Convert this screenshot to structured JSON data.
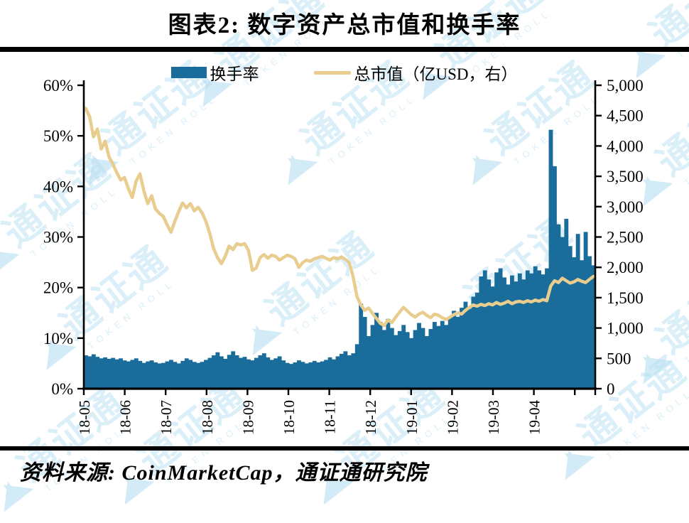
{
  "title": "图表2:  数字资产总市值和换手率",
  "source": "资料来源: CoinMarketCap，通证通研究院",
  "watermark": {
    "text": "通证通",
    "subtext": "TOKEN ROLL",
    "color": "#b9e0f4"
  },
  "legend": {
    "items": [
      {
        "label": "换手率",
        "swatch": "bar",
        "color": "#1a6c9a"
      },
      {
        "label": "总市值（亿USD，右）",
        "swatch": "line",
        "color": "#e8cd8e"
      }
    ]
  },
  "chart_data": {
    "type": "bar+line",
    "title": "数字资产总市值和换手率",
    "x_tick_labels": [
      "18-05",
      "18-06",
      "18-07",
      "18-08",
      "18-09",
      "18-10",
      "18-11",
      "18-12",
      "19-01",
      "19-02",
      "19-03",
      "19-04"
    ],
    "left_axis": {
      "label": "换手率",
      "unit": "%",
      "min": 0,
      "max": 60,
      "tick_labels": [
        "60%",
        "50%",
        "40%",
        "30%",
        "20%",
        "10%",
        "0%"
      ]
    },
    "right_axis": {
      "label": "总市值",
      "unit": "亿USD",
      "min": 0,
      "max": 5000,
      "tick_labels": [
        "5,000",
        "4,500",
        "4,000",
        "3,500",
        "3,000",
        "2,500",
        "2,000",
        "1,500",
        "1,000",
        "500",
        "0"
      ]
    },
    "grid": false,
    "legend_position": "top",
    "sampling": "约3日间隔, 2018-05 至 2019-05",
    "series": [
      {
        "name": "换手率",
        "type": "bar",
        "axis": "left",
        "unit": "%",
        "color": "#1a6c9a",
        "values": [
          6.6,
          6.4,
          6.8,
          6.3,
          6.0,
          6.2,
          5.9,
          6.1,
          5.8,
          6.0,
          5.6,
          5.4,
          5.7,
          6.0,
          5.5,
          5.1,
          5.4,
          5.6,
          5.2,
          5.0,
          5.1,
          5.4,
          5.7,
          5.3,
          5.0,
          5.5,
          6.0,
          5.7,
          5.3,
          5.1,
          5.3,
          5.7,
          6.1,
          6.6,
          7.2,
          6.4,
          5.9,
          6.7,
          7.4,
          6.6,
          6.1,
          6.3,
          5.8,
          5.6,
          6.1,
          6.6,
          7.0,
          6.2,
          5.7,
          6.0,
          6.4,
          5.6,
          5.1,
          4.9,
          5.2,
          5.6,
          5.3,
          5.0,
          5.2,
          5.5,
          5.2,
          5.4,
          5.7,
          6.2,
          5.8,
          6.4,
          6.9,
          7.4,
          6.6,
          7.0,
          8.8,
          16.8,
          14.2,
          10.4,
          12.6,
          15.0,
          13.2,
          11.6,
          13.8,
          12.0,
          10.6,
          11.4,
          12.6,
          11.2,
          10.0,
          11.6,
          13.0,
          12.0,
          10.4,
          11.8,
          13.2,
          12.4,
          13.4,
          12.6,
          14.0,
          15.4,
          14.2,
          16.0,
          17.2,
          15.8,
          18.2,
          19.0,
          22.2,
          23.4,
          21.6,
          20.2,
          23.0,
          23.8,
          22.0,
          20.6,
          22.4,
          21.2,
          22.8,
          21.6,
          23.4,
          22.8,
          24.2,
          23.4,
          22.6,
          23.8,
          51.2,
          44.0,
          32.5,
          30.0,
          33.6,
          28.2,
          26.0,
          30.6,
          25.4,
          31.0,
          26.2,
          24.4
        ]
      },
      {
        "name": "总市值",
        "type": "line",
        "axis": "right",
        "unit": "亿USD",
        "color": "#e8cd8e",
        "values": [
          4620,
          4480,
          4150,
          4280,
          3950,
          4080,
          3820,
          3700,
          3560,
          3440,
          3480,
          3300,
          3150,
          3420,
          3540,
          3260,
          3050,
          3180,
          2960,
          2890,
          2840,
          2700,
          2580,
          2760,
          2920,
          3060,
          2980,
          3050,
          2930,
          2990,
          2900,
          2760,
          2560,
          2310,
          2160,
          2060,
          2180,
          2350,
          2290,
          2390,
          2370,
          2390,
          2280,
          1950,
          1990,
          2160,
          2210,
          2150,
          2200,
          2180,
          2120,
          2160,
          2200,
          2180,
          2140,
          2000,
          2080,
          2120,
          2100,
          2140,
          2160,
          2180,
          2150,
          2120,
          2160,
          2140,
          2170,
          2130,
          2080,
          1850,
          1520,
          1380,
          1290,
          1330,
          1240,
          1160,
          1080,
          1040,
          1130,
          1090,
          1180,
          1260,
          1340,
          1280,
          1220,
          1180,
          1230,
          1260,
          1210,
          1170,
          1230,
          1210,
          1170,
          1140,
          1180,
          1220,
          1250,
          1230,
          1290,
          1340,
          1380,
          1360,
          1390,
          1370,
          1400,
          1380,
          1420,
          1390,
          1410,
          1440,
          1400,
          1430,
          1440,
          1420,
          1450,
          1430,
          1460,
          1440,
          1470,
          1450,
          1690,
          1780,
          1750,
          1820,
          1780,
          1740,
          1760,
          1800,
          1770,
          1750,
          1800,
          1850
        ]
      }
    ]
  }
}
